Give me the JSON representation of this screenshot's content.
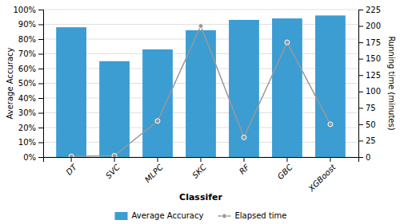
{
  "chart_data": {
    "type": "bar",
    "categories": [
      "DT",
      "SVC",
      "MLPC",
      "SKC",
      "RF",
      "GBC",
      "XGBoost"
    ],
    "series": [
      {
        "name": "Average Accuracy",
        "type": "bar",
        "color": "#3B9DD2",
        "values": [
          0.88,
          0.65,
          0.73,
          0.86,
          0.93,
          0.94,
          0.96
        ]
      },
      {
        "name": "Elapsed time",
        "type": "line",
        "axis": "y2",
        "color": "#999999",
        "marker": "circle",
        "values": [
          1,
          2,
          55,
          200,
          30,
          175,
          50
        ]
      }
    ],
    "xlabel": "Classifer",
    "ylabel": "Average Accuracy",
    "y2label": "Running time (minutes)",
    "ylim": [
      0,
      1.0
    ],
    "yticks": [
      {
        "value": 0.0,
        "label": "0%"
      },
      {
        "value": 0.1,
        "label": "10%"
      },
      {
        "value": 0.2,
        "label": "20%"
      },
      {
        "value": 0.3,
        "label": "30%"
      },
      {
        "value": 0.4,
        "label": "40%"
      },
      {
        "value": 0.5,
        "label": "50%"
      },
      {
        "value": 0.6,
        "label": "60%"
      },
      {
        "value": 0.7,
        "label": "70%"
      },
      {
        "value": 0.8,
        "label": "80%"
      },
      {
        "value": 0.9,
        "label": "90%"
      },
      {
        "value": 1.0,
        "label": "100%"
      }
    ],
    "y2lim": [
      0,
      225
    ],
    "y2ticks": [
      0,
      25,
      50,
      75,
      100,
      125,
      150,
      175,
      200,
      225
    ],
    "grid": true,
    "legend": "bottom"
  }
}
